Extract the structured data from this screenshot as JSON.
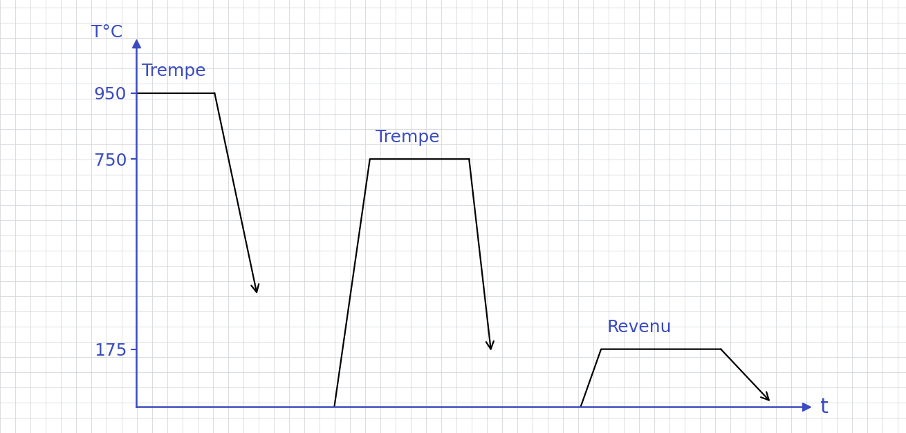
{
  "chart_data": {
    "type": "line",
    "y_label": "T°C",
    "x_label": "t",
    "series": [
      {
        "name": "Trempe",
        "color": "#000000",
        "x": [
          0,
          1.15,
          1.77
        ],
        "values": [
          950,
          950,
          342
        ]
      },
      {
        "name": "Trempe",
        "color": "#000000",
        "x": [
          2.9,
          3.42,
          4.87,
          5.19
        ],
        "values": [
          0,
          750,
          750,
          170
        ]
      },
      {
        "name": "Revenu",
        "color": "#000000",
        "x": [
          6.5,
          6.8,
          8.55,
          9.27
        ],
        "values": [
          0,
          175,
          175,
          17
        ]
      }
    ],
    "xlim": [
      0,
      9.8
    ],
    "ylim": [
      0,
      1100
    ],
    "yticks": [
      175,
      750,
      950
    ],
    "tick_labels": "y"
  }
}
